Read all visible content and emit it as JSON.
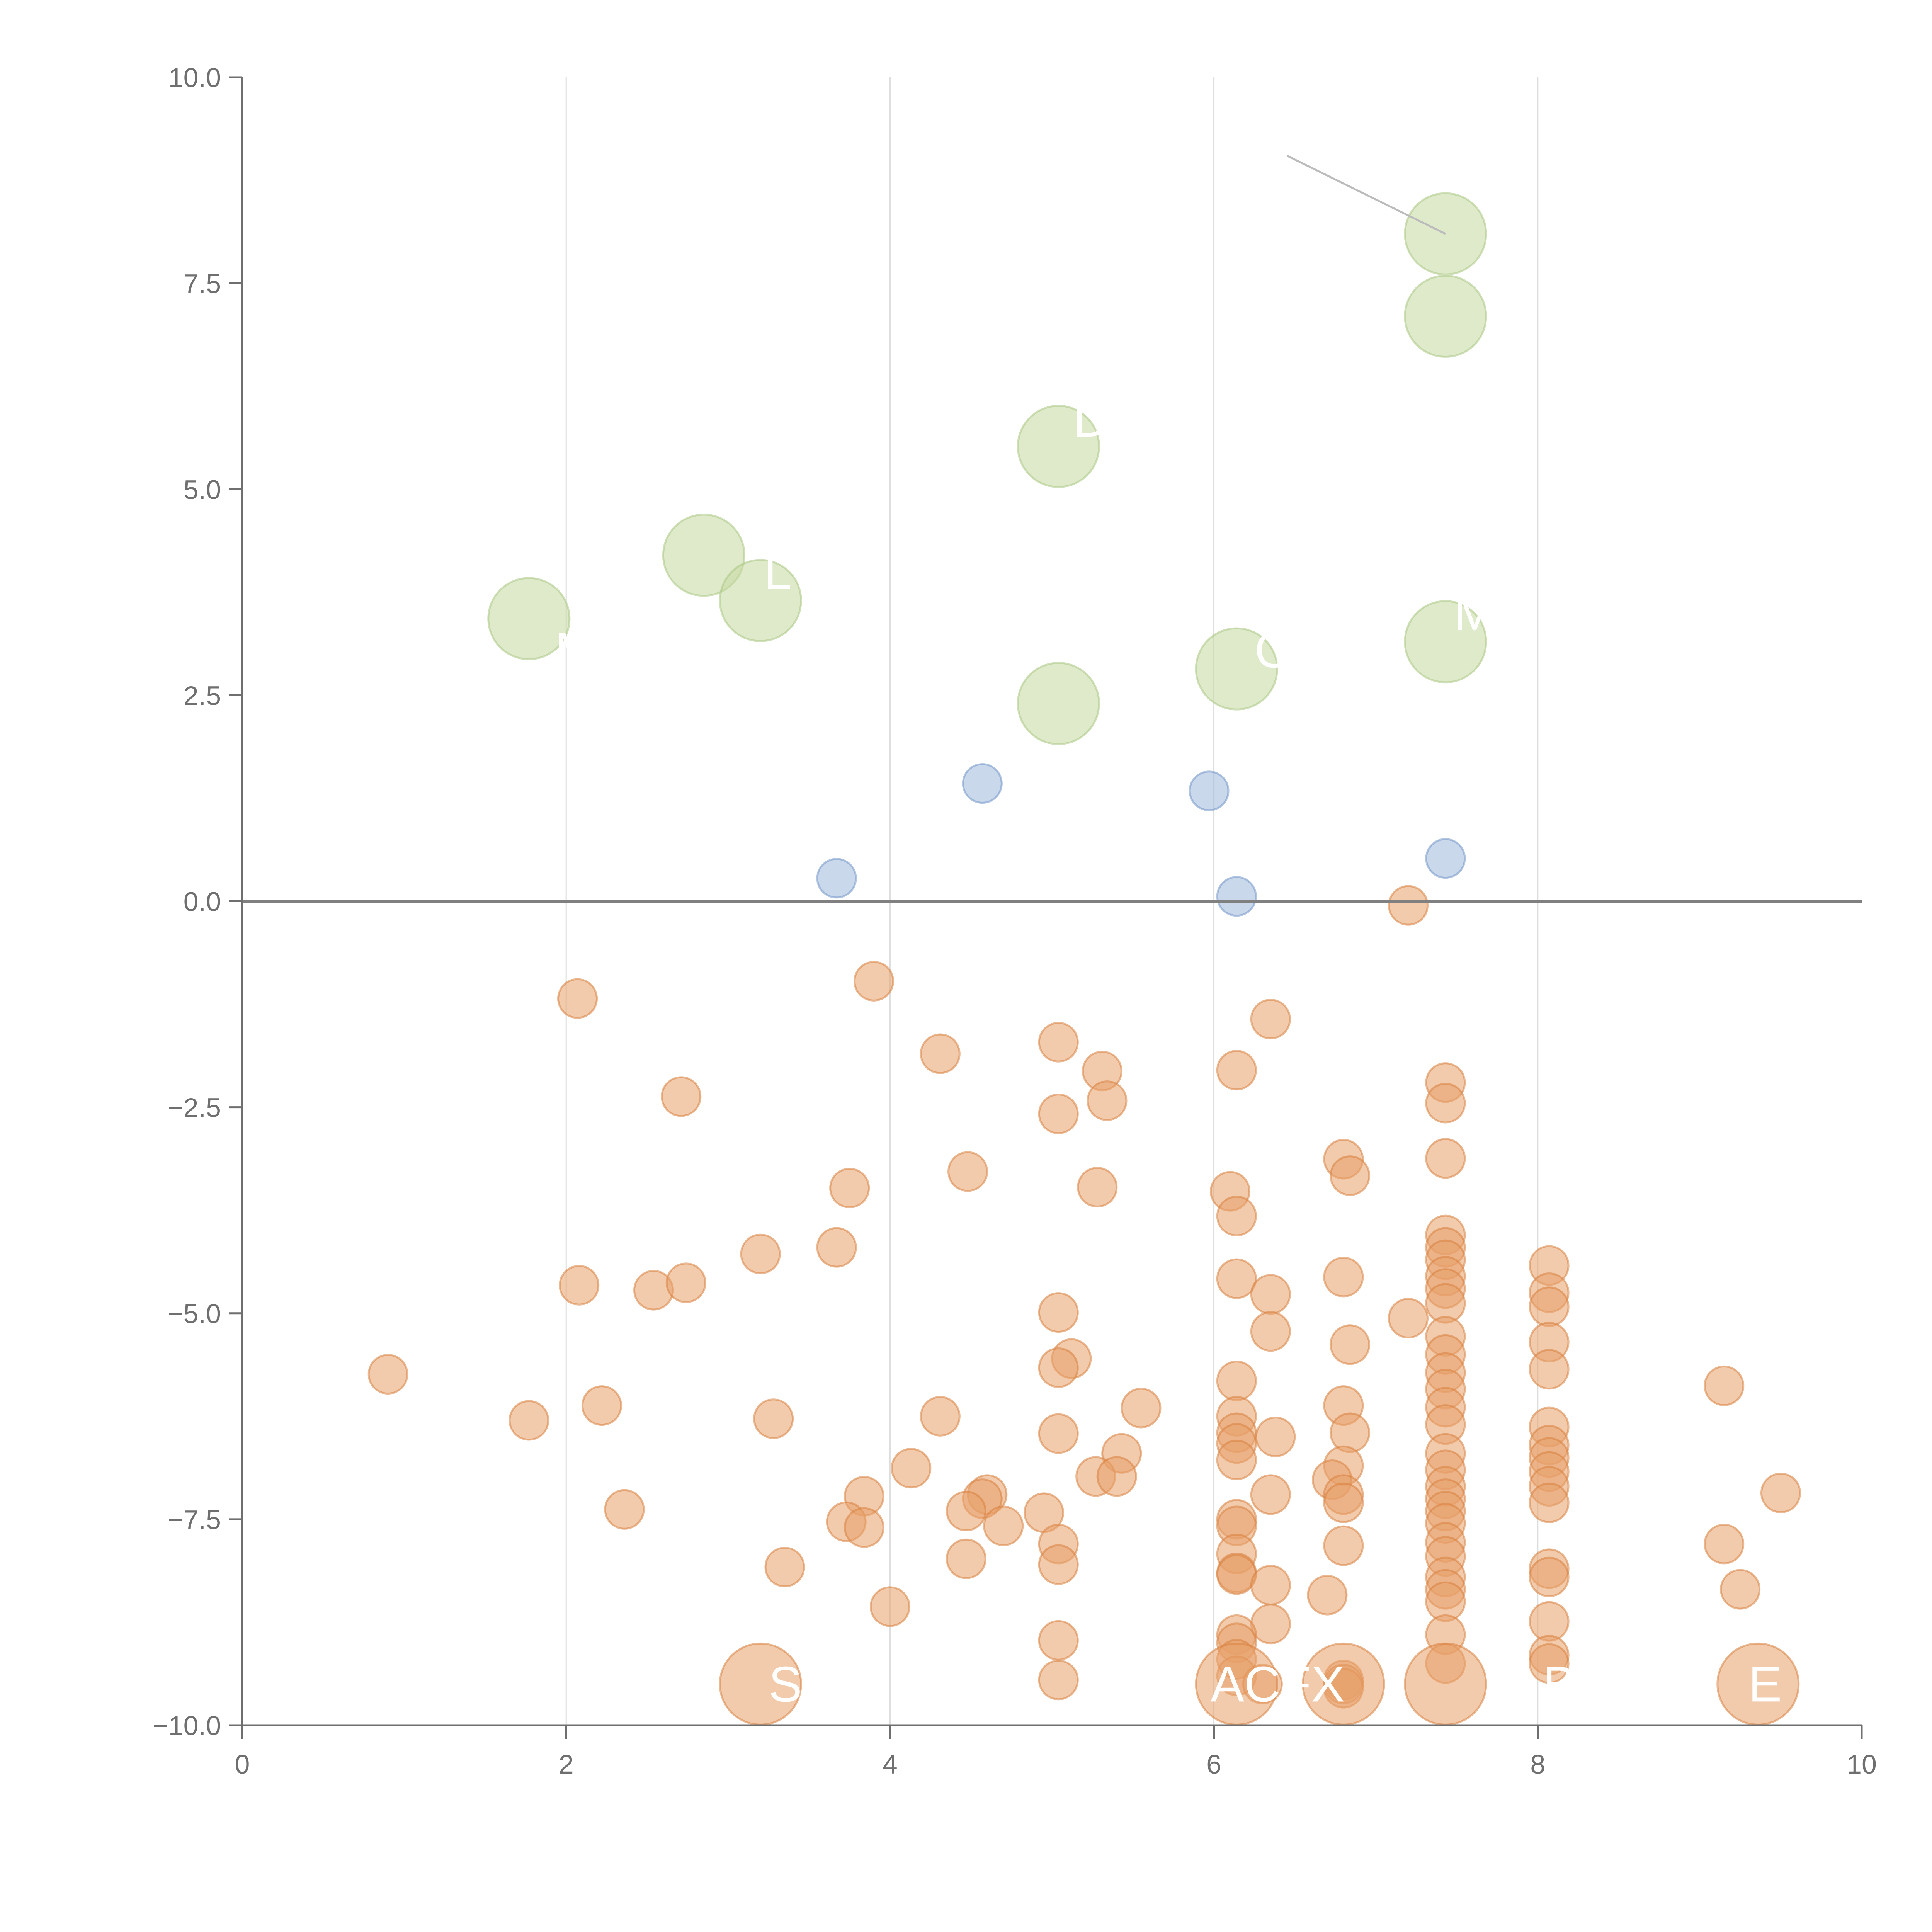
{
  "chart_data": {
    "type": "scatter",
    "title": "",
    "xlabel": "",
    "ylabel": "",
    "xlim": [
      0,
      10
    ],
    "ylim": [
      -10,
      10
    ],
    "x_ticks": [
      0,
      2,
      4,
      6,
      8,
      10
    ],
    "x_tick_labels": [
      "0",
      "2",
      "4",
      "6",
      "8",
      "10"
    ],
    "y_ticks": [
      -10,
      -7.5,
      -5,
      -2.5,
      0,
      2.5,
      5,
      7.5,
      10
    ],
    "y_tick_labels": [
      "−10.0",
      "−7.5",
      "−5.0",
      "−2.5",
      "0.0",
      "2.5",
      "5.0",
      "7.5",
      "10.0"
    ],
    "grid": "vertical",
    "reference_line_y": 0,
    "colors": {
      "orange": "#e8a06a",
      "orange_edge": "#d9823f",
      "blue": "#9fb8dd",
      "blue_edge": "#7396c9",
      "green": "#c4d9a0",
      "green_edge": "#a9c783",
      "axis": "#6f6f6f",
      "grid": "#dddddd",
      "zero_line": "#808080"
    },
    "series": [
      {
        "color": "blue",
        "size": "small",
        "points": [
          [
            3.67,
            0.28
          ],
          [
            4.57,
            1.43
          ],
          [
            5.97,
            1.34
          ],
          [
            6.14,
            0.06
          ],
          [
            7.43,
            0.52
          ]
        ]
      },
      {
        "color": "green",
        "size": "large",
        "points": [
          [
            7.43,
            8.1
          ],
          [
            7.43,
            7.1
          ],
          [
            5.04,
            5.52
          ],
          [
            2.85,
            4.2
          ],
          [
            3.2,
            3.65
          ],
          [
            1.77,
            3.43
          ],
          [
            7.43,
            3.15
          ],
          [
            6.14,
            2.82
          ],
          [
            5.04,
            2.4
          ]
        ]
      },
      {
        "color": "orange",
        "size": "small",
        "points": [
          [
            7.2,
            -0.05
          ],
          [
            3.9,
            -0.97
          ],
          [
            2.07,
            -1.18
          ],
          [
            6.35,
            -1.43
          ],
          [
            4.31,
            -1.85
          ],
          [
            5.04,
            -1.71
          ],
          [
            5.31,
            -2.06
          ],
          [
            6.14,
            -2.05
          ],
          [
            7.43,
            -2.2
          ],
          [
            7.43,
            -2.45
          ],
          [
            2.71,
            -2.37
          ],
          [
            5.34,
            -2.42
          ],
          [
            5.04,
            -2.58
          ],
          [
            7.43,
            -3.12
          ],
          [
            6.8,
            -3.13
          ],
          [
            6.84,
            -3.33
          ],
          [
            4.48,
            -3.28
          ],
          [
            3.75,
            -3.48
          ],
          [
            5.28,
            -3.47
          ],
          [
            6.1,
            -3.52
          ],
          [
            6.14,
            -3.82
          ],
          [
            3.67,
            -4.2
          ],
          [
            3.2,
            -4.28
          ],
          [
            7.43,
            -4.05
          ],
          [
            7.43,
            -4.2
          ],
          [
            7.43,
            -4.35
          ],
          [
            7.43,
            -4.55
          ],
          [
            7.43,
            -4.7
          ],
          [
            8.07,
            -4.42
          ],
          [
            8.07,
            -4.75
          ],
          [
            8.07,
            -4.92
          ],
          [
            6.8,
            -4.56
          ],
          [
            6.14,
            -4.58
          ],
          [
            6.35,
            -4.77
          ],
          [
            2.08,
            -4.66
          ],
          [
            2.54,
            -4.72
          ],
          [
            2.74,
            -4.63
          ],
          [
            5.04,
            -4.99
          ],
          [
            7.43,
            -4.88
          ],
          [
            7.2,
            -5.06
          ],
          [
            6.35,
            -5.22
          ],
          [
            7.43,
            -5.28
          ],
          [
            7.43,
            -5.5
          ],
          [
            6.84,
            -5.38
          ],
          [
            8.07,
            -5.35
          ],
          [
            0.9,
            -5.74
          ],
          [
            5.12,
            -5.55
          ],
          [
            5.04,
            -5.66
          ],
          [
            8.07,
            -5.68
          ],
          [
            7.43,
            -5.72
          ],
          [
            6.14,
            -5.82
          ],
          [
            7.43,
            -5.92
          ],
          [
            9.15,
            -5.88
          ],
          [
            2.22,
            -6.12
          ],
          [
            5.55,
            -6.15
          ],
          [
            6.8,
            -6.12
          ],
          [
            7.43,
            -6.14
          ],
          [
            1.77,
            -6.3
          ],
          [
            3.28,
            -6.28
          ],
          [
            4.31,
            -6.25
          ],
          [
            6.14,
            -6.25
          ],
          [
            6.14,
            -6.45
          ],
          [
            6.14,
            -6.58
          ],
          [
            6.38,
            -6.5
          ],
          [
            7.43,
            -6.35
          ],
          [
            8.07,
            -6.38
          ],
          [
            5.04,
            -6.46
          ],
          [
            6.84,
            -6.45
          ],
          [
            8.07,
            -6.6
          ],
          [
            8.07,
            -6.75
          ],
          [
            5.43,
            -6.7
          ],
          [
            6.14,
            -6.78
          ],
          [
            7.43,
            -6.7
          ],
          [
            6.8,
            -6.85
          ],
          [
            7.43,
            -6.9
          ],
          [
            4.13,
            -6.88
          ],
          [
            8.07,
            -6.92
          ],
          [
            5.27,
            -6.98
          ],
          [
            5.4,
            -6.98
          ],
          [
            6.73,
            -7.02
          ],
          [
            8.07,
            -7.1
          ],
          [
            7.43,
            -7.1
          ],
          [
            7.43,
            -7.25
          ],
          [
            6.35,
            -7.2
          ],
          [
            3.84,
            -7.22
          ],
          [
            4.6,
            -7.2
          ],
          [
            4.57,
            -7.25
          ],
          [
            6.8,
            -7.2
          ],
          [
            6.8,
            -7.3
          ],
          [
            9.5,
            -7.18
          ],
          [
            8.07,
            -7.3
          ],
          [
            7.43,
            -7.4
          ],
          [
            2.36,
            -7.38
          ],
          [
            4.47,
            -7.4
          ],
          [
            4.95,
            -7.42
          ],
          [
            6.14,
            -7.5
          ],
          [
            6.14,
            -7.58
          ],
          [
            7.43,
            -7.55
          ],
          [
            3.73,
            -7.53
          ],
          [
            3.84,
            -7.6
          ],
          [
            4.7,
            -7.58
          ],
          [
            5.04,
            -7.8
          ],
          [
            7.43,
            -7.78
          ],
          [
            7.43,
            -7.95
          ],
          [
            6.8,
            -7.82
          ],
          [
            6.14,
            -7.92
          ],
          [
            9.15,
            -7.8
          ],
          [
            4.47,
            -7.98
          ],
          [
            5.04,
            -8.05
          ],
          [
            3.35,
            -8.08
          ],
          [
            8.07,
            -8.1
          ],
          [
            8.07,
            -8.2
          ],
          [
            6.14,
            -8.15
          ],
          [
            6.14,
            -8.17
          ],
          [
            7.43,
            -8.2
          ],
          [
            7.43,
            -8.35
          ],
          [
            6.35,
            -8.3
          ],
          [
            9.25,
            -8.35
          ],
          [
            6.7,
            -8.42
          ],
          [
            7.43,
            -8.5
          ],
          [
            4.0,
            -8.56
          ],
          [
            6.35,
            -8.77
          ],
          [
            8.07,
            -8.74
          ],
          [
            6.14,
            -8.9
          ],
          [
            6.14,
            -9.0
          ],
          [
            7.43,
            -8.9
          ],
          [
            5.04,
            -8.97
          ],
          [
            8.07,
            -9.15
          ],
          [
            8.07,
            -9.25
          ],
          [
            6.14,
            -9.2
          ],
          [
            7.43,
            -9.25
          ],
          [
            6.14,
            -9.4
          ],
          [
            6.8,
            -9.45
          ],
          [
            6.8,
            -9.5
          ],
          [
            6.8,
            -9.55
          ],
          [
            6.3,
            -9.5
          ],
          [
            5.04,
            -9.45
          ]
        ]
      },
      {
        "color": "orange",
        "size": "large",
        "points": [
          [
            3.2,
            -9.5
          ],
          [
            6.14,
            -9.5
          ],
          [
            6.8,
            -9.5
          ],
          [
            7.43,
            -9.5
          ],
          [
            9.36,
            -9.5
          ]
        ]
      }
    ],
    "labels": [
      {
        "text": "M",
        "x": 1.93,
        "y": 3.05
      },
      {
        "text": "L",
        "x": 3.22,
        "y": 4.0
      },
      {
        "text": "D",
        "x": 5.13,
        "y": 5.85
      },
      {
        "text": "C",
        "x": 6.25,
        "y": 3.05
      },
      {
        "text": "M",
        "x": 7.48,
        "y": 3.5
      },
      {
        "text": "S",
        "x": 3.25,
        "y": -9.5
      },
      {
        "text": "ACFX",
        "x": 5.98,
        "y": -9.5
      },
      {
        "text": "B",
        "x": 8.03,
        "y": -9.5
      },
      {
        "text": "E",
        "x": 9.3,
        "y": -9.5
      }
    ],
    "connectors": [
      {
        "x1": 6.45,
        "y1": 9.05,
        "x2": 7.43,
        "y2": 8.1,
        "color": "#bbbbbb"
      }
    ]
  }
}
